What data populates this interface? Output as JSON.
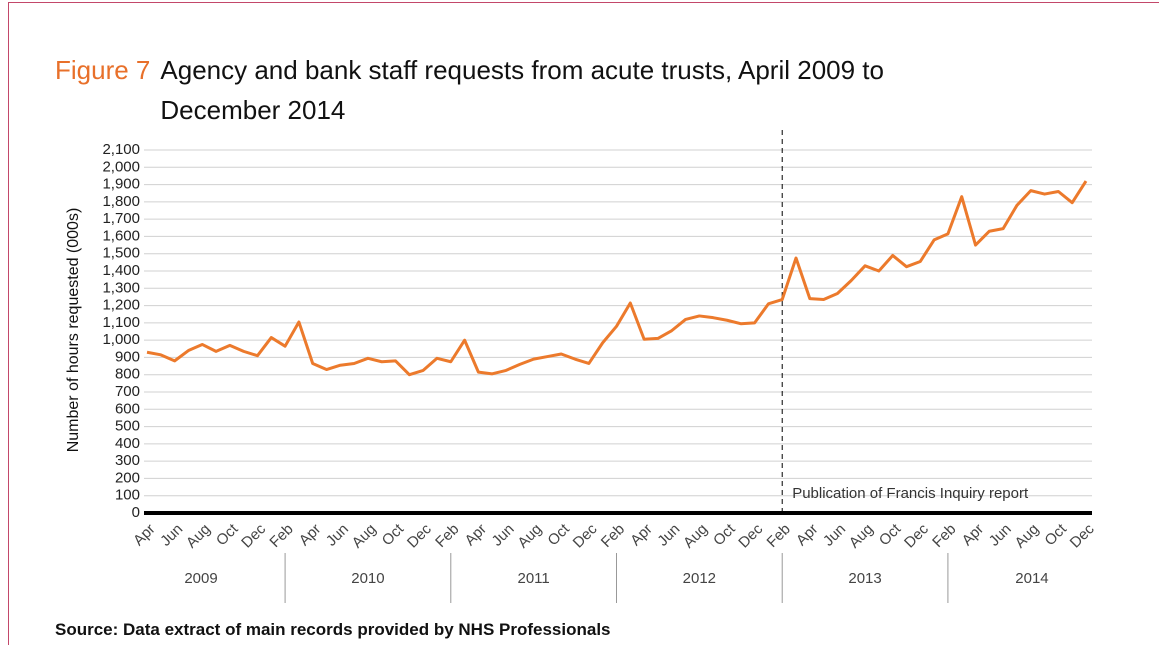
{
  "chart_data": {
    "type": "line",
    "figure_label": "Figure 7",
    "title": "Agency and bank staff requests from acute trusts, April 2009 to December 2014",
    "y_label": "Number of hours requested (000s)",
    "source": "Source: Data extract of main records provided by NHS Professionals",
    "categories": [
      "Apr",
      null,
      "Jun",
      null,
      "Aug",
      null,
      "Oct",
      null,
      "Dec",
      null,
      "Feb",
      null,
      "Apr",
      null,
      "Jun",
      null,
      "Aug",
      null,
      "Oct",
      null,
      "Dec",
      null,
      "Feb",
      null,
      "Apr",
      null,
      "Jun",
      null,
      "Aug",
      null,
      "Oct",
      null,
      "Dec",
      null,
      "Feb",
      null,
      "Apr",
      null,
      "Jun",
      null,
      "Aug",
      null,
      "Oct",
      null,
      "Dec",
      null,
      "Feb",
      null,
      "Apr",
      null,
      "Jun",
      null,
      "Aug",
      null,
      "Oct",
      null,
      "Dec",
      null,
      "Feb",
      null,
      "Apr",
      null,
      "Jun",
      null,
      "Aug",
      null,
      "Oct",
      null,
      "Dec"
    ],
    "years": [
      "2009",
      "2010",
      "2011",
      "2012",
      "2013",
      "2014"
    ],
    "series": [
      {
        "name": "Hours requested",
        "color": "#ec7a2c",
        "values": [
          930,
          915,
          880,
          940,
          975,
          935,
          970,
          935,
          910,
          1015,
          965,
          1105,
          865,
          830,
          855,
          865,
          895,
          875,
          880,
          800,
          825,
          895,
          875,
          1000,
          815,
          805,
          825,
          860,
          890,
          905,
          920,
          890,
          865,
          985,
          1080,
          1215,
          1005,
          1010,
          1055,
          1120,
          1140,
          1130,
          1115,
          1095,
          1100,
          1210,
          1235,
          1475,
          1240,
          1235,
          1270,
          1345,
          1430,
          1400,
          1490,
          1425,
          1455,
          1580,
          1615,
          1830,
          1550,
          1630,
          1645,
          1780,
          1865,
          1845,
          1860,
          1795,
          1920
        ]
      }
    ],
    "ylim": [
      0,
      2100
    ],
    "yticks": [
      0,
      100,
      200,
      300,
      400,
      500,
      600,
      700,
      800,
      900,
      {
        "value": 1000,
        "label": "1,000"
      },
      {
        "value": 1100,
        "label": "1,100"
      },
      {
        "value": 1200,
        "label": "1,200"
      },
      {
        "value": 1300,
        "label": "1,300"
      },
      {
        "value": 1400,
        "label": "1,400"
      },
      {
        "value": 1500,
        "label": "1,500"
      },
      {
        "value": 1600,
        "label": "1,600"
      },
      {
        "value": 1700,
        "label": "1,700"
      },
      {
        "value": 1800,
        "label": "1,800"
      },
      {
        "value": 1900,
        "label": "1,900"
      },
      {
        "value": 2000,
        "label": "2,000"
      },
      {
        "value": 2100,
        "label": "2,100"
      }
    ],
    "grid": true,
    "annotation": {
      "text": "Publication of Francis Inquiry report",
      "category_index": 46
    }
  }
}
